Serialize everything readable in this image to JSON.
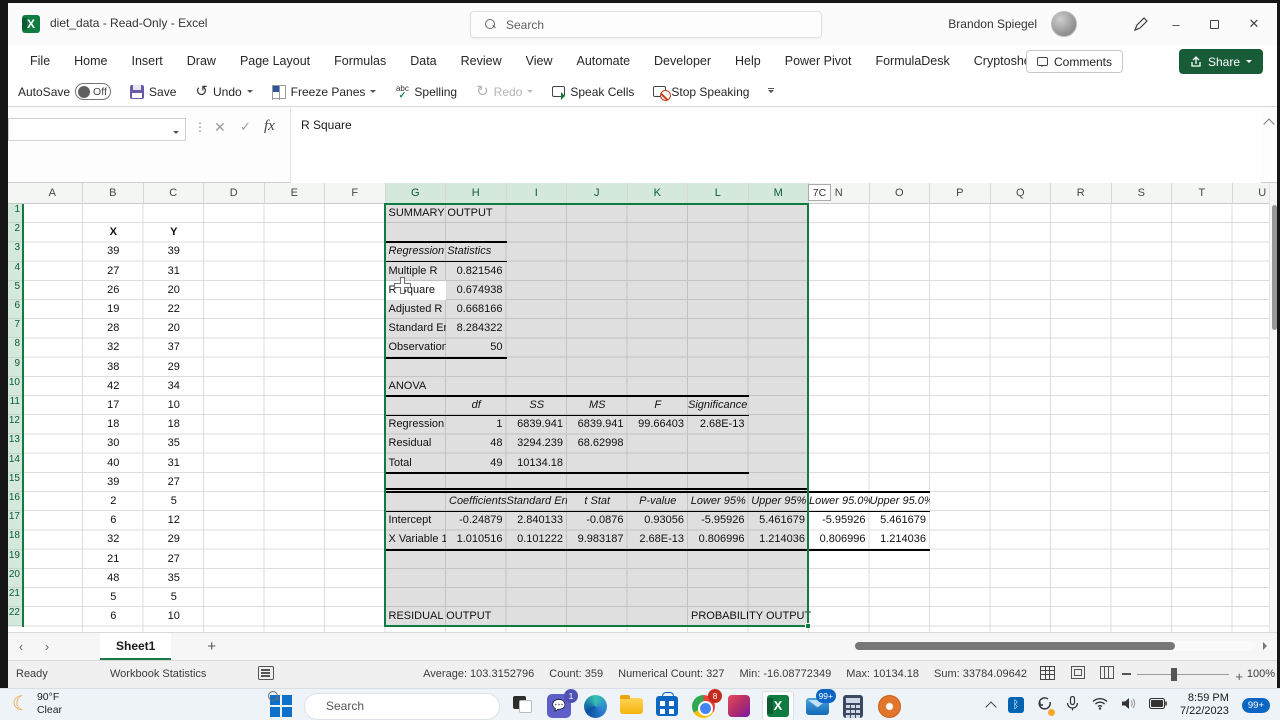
{
  "colors": {
    "accent_green": "#217346",
    "selection_green": "#107C41",
    "taskbar_badge_blue": "#0b66c3"
  },
  "title_bar": {
    "title": "diet_data  -  Read-Only  -  Excel",
    "search_placeholder": "Search",
    "user_name": "Brandon Spiegel",
    "minimize_glyph": "–",
    "close_glyph": "✕"
  },
  "ribbon": {
    "tabs": [
      "File",
      "Home",
      "Insert",
      "Draw",
      "Page Layout",
      "Formulas",
      "Data",
      "Review",
      "View",
      "Automate",
      "Developer",
      "Help",
      "Power Pivot",
      "FormulaDesk",
      "Cryptosheets"
    ],
    "comments_label": "Comments",
    "share_label": "Share"
  },
  "qat": {
    "autosave_label": "AutoSave",
    "autosave_state": "Off",
    "save_label": "Save",
    "undo_label": "Undo",
    "undo_glyph": "↺",
    "redo_label": "Redo",
    "redo_glyph": "↻",
    "freeze_label": "Freeze Panes",
    "spelling_label": "Spelling",
    "spelling_icon_text": "abc",
    "spelling_icon_check": "✓",
    "speak_label": "Speak Cells",
    "stop_label": "Stop Speaking"
  },
  "formula_bar": {
    "name_box_value": "",
    "cancel_glyph": "✕",
    "enter_glyph": "✓",
    "fx_label": "fx",
    "value": "R Square"
  },
  "sheet": {
    "columns": [
      "A",
      "B",
      "C",
      "D",
      "E",
      "F",
      "G",
      "H",
      "I",
      "J",
      "K",
      "L",
      "M",
      "N",
      "O",
      "P",
      "Q",
      "R",
      "S",
      "T",
      "U"
    ],
    "selected_columns_from": 6,
    "selected_columns_to": 12,
    "rows_visible": 22,
    "active_cell_value": "R Square",
    "selection_size_tooltip": "7C",
    "xy": {
      "x_header": "X",
      "y_header": "Y",
      "rows": [
        [
          39,
          39
        ],
        [
          27,
          31
        ],
        [
          26,
          20
        ],
        [
          19,
          22
        ],
        [
          28,
          20
        ],
        [
          32,
          37
        ],
        [
          38,
          29
        ],
        [
          42,
          34
        ],
        [
          17,
          10
        ],
        [
          18,
          18
        ],
        [
          30,
          35
        ],
        [
          40,
          31
        ],
        [
          39,
          27
        ],
        [
          2,
          5
        ],
        [
          6,
          12
        ],
        [
          32,
          29
        ],
        [
          21,
          27
        ],
        [
          48,
          35
        ],
        [
          5,
          5
        ],
        [
          6,
          10
        ]
      ]
    },
    "cells": [
      {
        "c": 6,
        "r": 1,
        "t": "SUMMARY OUTPUT",
        "s": "lbl",
        "w": 3
      },
      {
        "c": 6,
        "r": 3,
        "t": "Regression Statistics",
        "s": "lbl i",
        "w": 2
      },
      {
        "c": 6,
        "r": 4,
        "t": "Multiple R",
        "s": "lbl"
      },
      {
        "c": 7,
        "r": 4,
        "t": "0.821546",
        "s": "num"
      },
      {
        "c": 6,
        "r": 5,
        "t": "R Square",
        "s": "lbl g5"
      },
      {
        "c": 7,
        "r": 5,
        "t": "0.674938",
        "s": "num"
      },
      {
        "c": 6,
        "r": 6,
        "t": "Adjusted R Square",
        "s": "lbl"
      },
      {
        "c": 7,
        "r": 6,
        "t": "0.668166",
        "s": "num"
      },
      {
        "c": 6,
        "r": 7,
        "t": "Standard Error",
        "s": "lbl"
      },
      {
        "c": 7,
        "r": 7,
        "t": "8.284322",
        "s": "num"
      },
      {
        "c": 6,
        "r": 8,
        "t": "Observations",
        "s": "lbl"
      },
      {
        "c": 7,
        "r": 8,
        "t": "50",
        "s": "num"
      },
      {
        "c": 6,
        "r": 10,
        "t": "ANOVA",
        "s": "lbl"
      },
      {
        "c": 7,
        "r": 11,
        "t": "df",
        "s": "ctr i"
      },
      {
        "c": 8,
        "r": 11,
        "t": "SS",
        "s": "ctr i"
      },
      {
        "c": 9,
        "r": 11,
        "t": "MS",
        "s": "ctr i"
      },
      {
        "c": 10,
        "r": 11,
        "t": "F",
        "s": "ctr i"
      },
      {
        "c": 11,
        "r": 11,
        "t": "Significance F",
        "s": "cR i"
      },
      {
        "c": 6,
        "r": 12,
        "t": "Regression",
        "s": "lbl"
      },
      {
        "c": 7,
        "r": 12,
        "t": "1",
        "s": "num"
      },
      {
        "c": 8,
        "r": 12,
        "t": "6839.941",
        "s": "num"
      },
      {
        "c": 9,
        "r": 12,
        "t": "6839.941",
        "s": "num"
      },
      {
        "c": 10,
        "r": 12,
        "t": "99.66403",
        "s": "num"
      },
      {
        "c": 11,
        "r": 12,
        "t": "2.68E-13",
        "s": "num"
      },
      {
        "c": 6,
        "r": 13,
        "t": "Residual",
        "s": "lbl"
      },
      {
        "c": 7,
        "r": 13,
        "t": "48",
        "s": "num"
      },
      {
        "c": 8,
        "r": 13,
        "t": "3294.239",
        "s": "num"
      },
      {
        "c": 9,
        "r": 13,
        "t": "68.62998",
        "s": "num"
      },
      {
        "c": 6,
        "r": 14,
        "t": "Total",
        "s": "lbl"
      },
      {
        "c": 7,
        "r": 14,
        "t": "49",
        "s": "num"
      },
      {
        "c": 8,
        "r": 14,
        "t": "10134.18",
        "s": "num"
      },
      {
        "c": 7,
        "r": 16,
        "t": "Coefficients",
        "s": "lbl i"
      },
      {
        "c": 8,
        "r": 16,
        "t": "Standard Error",
        "s": "ctr i"
      },
      {
        "c": 9,
        "r": 16,
        "t": "t Stat",
        "s": "ctr i"
      },
      {
        "c": 10,
        "r": 16,
        "t": "P-value",
        "s": "ctr i"
      },
      {
        "c": 11,
        "r": 16,
        "t": "Lower 95%",
        "s": "ctr i"
      },
      {
        "c": 12,
        "r": 16,
        "t": "Upper 95%",
        "s": "ctr i"
      },
      {
        "c": 13,
        "r": 16,
        "t": "Lower 95.0%",
        "s": "cR i"
      },
      {
        "c": 14,
        "r": 16,
        "t": "Upper 95.0%",
        "s": "cR i"
      },
      {
        "c": 6,
        "r": 17,
        "t": "Intercept",
        "s": "lbl"
      },
      {
        "c": 7,
        "r": 17,
        "t": "-0.24879",
        "s": "num"
      },
      {
        "c": 8,
        "r": 17,
        "t": "2.840133",
        "s": "num"
      },
      {
        "c": 9,
        "r": 17,
        "t": "-0.0876",
        "s": "num"
      },
      {
        "c": 10,
        "r": 17,
        "t": "0.93056",
        "s": "num"
      },
      {
        "c": 11,
        "r": 17,
        "t": "-5.95926",
        "s": "num"
      },
      {
        "c": 12,
        "r": 17,
        "t": "5.461679",
        "s": "num"
      },
      {
        "c": 13,
        "r": 17,
        "t": "-5.95926",
        "s": "num"
      },
      {
        "c": 14,
        "r": 17,
        "t": "5.461679",
        "s": "num"
      },
      {
        "c": 6,
        "r": 18,
        "t": "X Variable 1",
        "s": "lbl"
      },
      {
        "c": 7,
        "r": 18,
        "t": "1.010516",
        "s": "num"
      },
      {
        "c": 8,
        "r": 18,
        "t": "0.101222",
        "s": "num"
      },
      {
        "c": 9,
        "r": 18,
        "t": "9.983187",
        "s": "num"
      },
      {
        "c": 10,
        "r": 18,
        "t": "2.68E-13",
        "s": "num"
      },
      {
        "c": 11,
        "r": 18,
        "t": "0.806996",
        "s": "num"
      },
      {
        "c": 12,
        "r": 18,
        "t": "1.214036",
        "s": "num"
      },
      {
        "c": 13,
        "r": 18,
        "t": "0.806996",
        "s": "num"
      },
      {
        "c": 14,
        "r": 18,
        "t": "1.214036",
        "s": "num"
      },
      {
        "c": 6,
        "r": 22,
        "t": "RESIDUAL OUTPUT",
        "s": "lbl",
        "w": 3
      },
      {
        "c": 11,
        "r": 22,
        "t": "PROBABILITY OUTPUT",
        "s": "lbl",
        "w": 3
      }
    ]
  },
  "sheet_tabs": {
    "prev_glyph": "‹",
    "next_glyph": "›",
    "active_tab": "Sheet1",
    "add_glyph": "+"
  },
  "status_bar": {
    "mode": "Ready",
    "workbook_statistics": "Workbook Statistics",
    "stats": [
      "Average: 103.3152796",
      "Count: 359",
      "Numerical Count: 327",
      "Min: -16.08772349",
      "Max: 10134.18",
      "Sum: 33784.09642"
    ],
    "zoom_plus": "+",
    "zoom_level": "100%"
  },
  "taskbar": {
    "weather_icon_glyph": "☾",
    "weather_temp": "90°F",
    "weather_condition": "Clear",
    "search_placeholder": "Search",
    "teams_badge": "1",
    "chrome_badge": "8",
    "mail_badge": "99+",
    "bluetooth_glyph": "ᛒ",
    "time": "8:59 PM",
    "date": "7/22/2023",
    "notification_badge": "99+"
  }
}
